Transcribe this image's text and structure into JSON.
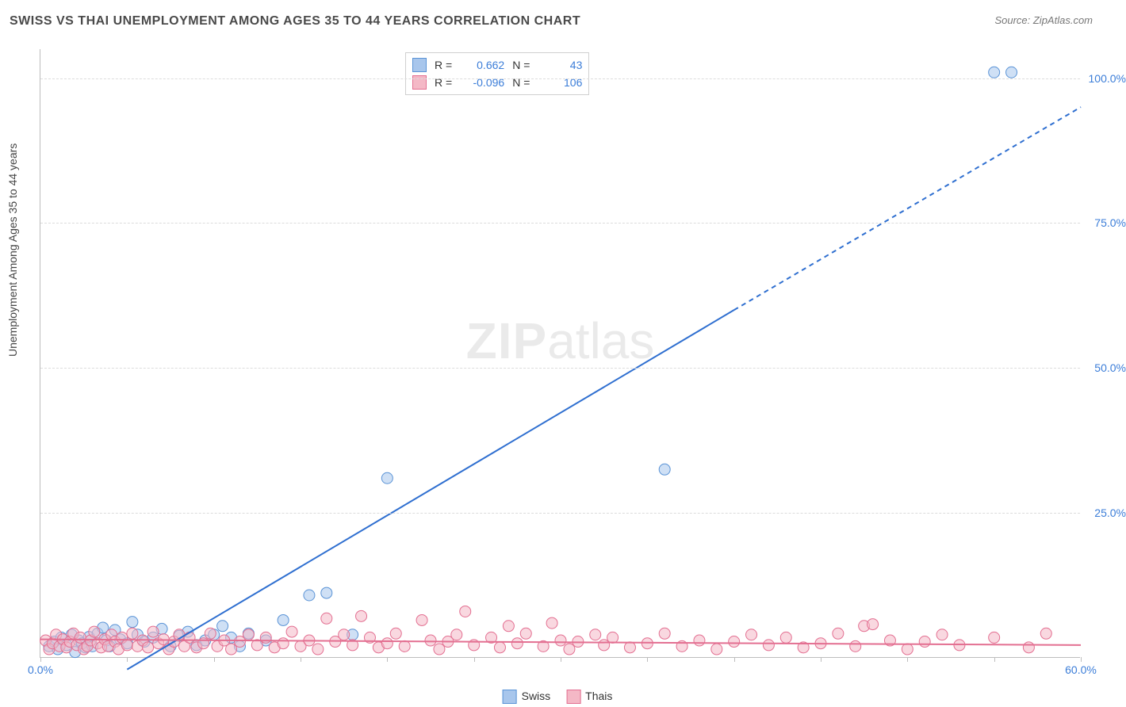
{
  "title": "SWISS VS THAI UNEMPLOYMENT AMONG AGES 35 TO 44 YEARS CORRELATION CHART",
  "source": "Source: ZipAtlas.com",
  "ylabel": "Unemployment Among Ages 35 to 44 years",
  "watermark_zip": "ZIP",
  "watermark_atlas": "atlas",
  "chart": {
    "type": "scatter",
    "xlim": [
      0,
      60
    ],
    "ylim": [
      0,
      105
    ],
    "x_ticks_minor_step": 5,
    "x_ticks": [
      {
        "v": 0,
        "label": "0.0%"
      },
      {
        "v": 60,
        "label": "60.0%"
      }
    ],
    "y_gridlines": [
      25,
      50,
      75,
      100
    ],
    "y_ticks": [
      {
        "v": 25,
        "label": "25.0%"
      },
      {
        "v": 50,
        "label": "50.0%"
      },
      {
        "v": 75,
        "label": "75.0%"
      },
      {
        "v": 100,
        "label": "100.0%"
      }
    ],
    "series": [
      {
        "id": "swiss",
        "name": "Swiss",
        "marker_fill": "#a8c6ec",
        "marker_stroke": "#5a93d6",
        "marker_opacity": 0.55,
        "marker_r": 7,
        "R": "0.662",
        "N": "43",
        "trend": {
          "x1": 5,
          "y1": -2,
          "x2": 40,
          "y2": 60,
          "x2_dash": 60,
          "y2_dash": 95,
          "stroke": "#2f6fd0",
          "width": 2
        },
        "points": [
          [
            0.5,
            2.0
          ],
          [
            0.8,
            2.8
          ],
          [
            1.0,
            1.5
          ],
          [
            1.2,
            3.5
          ],
          [
            1.5,
            2.2
          ],
          [
            1.8,
            4.0
          ],
          [
            2.0,
            1.0
          ],
          [
            2.2,
            3.0
          ],
          [
            2.4,
            2.5
          ],
          [
            2.6,
            1.8
          ],
          [
            2.8,
            3.6
          ],
          [
            3.0,
            2.0
          ],
          [
            3.3,
            4.2
          ],
          [
            3.6,
            5.2
          ],
          [
            3.8,
            3.0
          ],
          [
            4.0,
            2.0
          ],
          [
            4.3,
            4.8
          ],
          [
            4.6,
            3.2
          ],
          [
            5.0,
            2.5
          ],
          [
            5.3,
            6.2
          ],
          [
            5.6,
            4.0
          ],
          [
            6.0,
            2.8
          ],
          [
            6.5,
            3.5
          ],
          [
            7.0,
            5.0
          ],
          [
            7.5,
            2.0
          ],
          [
            8.0,
            3.8
          ],
          [
            8.5,
            4.5
          ],
          [
            9.0,
            2.2
          ],
          [
            9.5,
            3.0
          ],
          [
            10.0,
            4.0
          ],
          [
            10.5,
            5.5
          ],
          [
            11.0,
            3.5
          ],
          [
            11.5,
            2.0
          ],
          [
            12.0,
            4.2
          ],
          [
            13.0,
            3.0
          ],
          [
            14.0,
            6.5
          ],
          [
            15.5,
            10.8
          ],
          [
            16.5,
            11.2
          ],
          [
            18.0,
            4.0
          ],
          [
            20.0,
            31.0
          ],
          [
            36.0,
            32.5
          ],
          [
            55.0,
            101.0
          ],
          [
            56.0,
            101.0
          ]
        ]
      },
      {
        "id": "thais",
        "name": "Thais",
        "marker_fill": "#f4b8c6",
        "marker_stroke": "#e36f91",
        "marker_opacity": 0.55,
        "marker_r": 7,
        "R": "-0.096",
        "N": "106",
        "trend": {
          "x1": 0,
          "y1": 3.2,
          "x2": 60,
          "y2": 2.2,
          "stroke": "#e36f91",
          "width": 2
        },
        "points": [
          [
            0.3,
            3.0
          ],
          [
            0.5,
            1.5
          ],
          [
            0.7,
            2.5
          ],
          [
            0.9,
            4.0
          ],
          [
            1.1,
            2.0
          ],
          [
            1.3,
            3.2
          ],
          [
            1.5,
            1.8
          ],
          [
            1.7,
            2.8
          ],
          [
            1.9,
            4.2
          ],
          [
            2.1,
            2.2
          ],
          [
            2.3,
            3.5
          ],
          [
            2.5,
            1.5
          ],
          [
            2.7,
            2.0
          ],
          [
            2.9,
            3.0
          ],
          [
            3.1,
            4.5
          ],
          [
            3.3,
            2.5
          ],
          [
            3.5,
            1.8
          ],
          [
            3.7,
            3.2
          ],
          [
            3.9,
            2.0
          ],
          [
            4.1,
            4.0
          ],
          [
            4.3,
            2.8
          ],
          [
            4.5,
            1.5
          ],
          [
            4.7,
            3.5
          ],
          [
            5.0,
            2.2
          ],
          [
            5.3,
            4.2
          ],
          [
            5.6,
            2.0
          ],
          [
            5.9,
            3.0
          ],
          [
            6.2,
            1.8
          ],
          [
            6.5,
            4.5
          ],
          [
            6.8,
            2.5
          ],
          [
            7.1,
            3.2
          ],
          [
            7.4,
            1.5
          ],
          [
            7.7,
            2.8
          ],
          [
            8.0,
            4.0
          ],
          [
            8.3,
            2.0
          ],
          [
            8.6,
            3.5
          ],
          [
            9.0,
            1.8
          ],
          [
            9.4,
            2.5
          ],
          [
            9.8,
            4.2
          ],
          [
            10.2,
            2.0
          ],
          [
            10.6,
            3.0
          ],
          [
            11.0,
            1.5
          ],
          [
            11.5,
            2.8
          ],
          [
            12.0,
            4.0
          ],
          [
            12.5,
            2.2
          ],
          [
            13.0,
            3.5
          ],
          [
            13.5,
            1.8
          ],
          [
            14.0,
            2.5
          ],
          [
            14.5,
            4.5
          ],
          [
            15.0,
            2.0
          ],
          [
            15.5,
            3.0
          ],
          [
            16.0,
            1.5
          ],
          [
            16.5,
            6.8
          ],
          [
            17.0,
            2.8
          ],
          [
            17.5,
            4.0
          ],
          [
            18.0,
            2.2
          ],
          [
            18.5,
            7.2
          ],
          [
            19.0,
            3.5
          ],
          [
            19.5,
            1.8
          ],
          [
            20.0,
            2.5
          ],
          [
            20.5,
            4.2
          ],
          [
            21.0,
            2.0
          ],
          [
            22.0,
            6.5
          ],
          [
            22.5,
            3.0
          ],
          [
            23.0,
            1.5
          ],
          [
            23.5,
            2.8
          ],
          [
            24.0,
            4.0
          ],
          [
            24.5,
            8.0
          ],
          [
            25.0,
            2.2
          ],
          [
            26.0,
            3.5
          ],
          [
            26.5,
            1.8
          ],
          [
            27.0,
            5.5
          ],
          [
            27.5,
            2.5
          ],
          [
            28.0,
            4.2
          ],
          [
            29.0,
            2.0
          ],
          [
            29.5,
            6.0
          ],
          [
            30.0,
            3.0
          ],
          [
            30.5,
            1.5
          ],
          [
            31.0,
            2.8
          ],
          [
            32.0,
            4.0
          ],
          [
            32.5,
            2.2
          ],
          [
            33.0,
            3.5
          ],
          [
            34.0,
            1.8
          ],
          [
            35.0,
            2.5
          ],
          [
            36.0,
            4.2
          ],
          [
            37.0,
            2.0
          ],
          [
            38.0,
            3.0
          ],
          [
            39.0,
            1.5
          ],
          [
            40.0,
            2.8
          ],
          [
            41.0,
            4.0
          ],
          [
            42.0,
            2.2
          ],
          [
            43.0,
            3.5
          ],
          [
            44.0,
            1.8
          ],
          [
            45.0,
            2.5
          ],
          [
            46.0,
            4.2
          ],
          [
            47.0,
            2.0
          ],
          [
            47.5,
            5.5
          ],
          [
            48.0,
            5.8
          ],
          [
            49.0,
            3.0
          ],
          [
            50.0,
            1.5
          ],
          [
            51.0,
            2.8
          ],
          [
            52.0,
            4.0
          ],
          [
            53.0,
            2.2
          ],
          [
            55.0,
            3.5
          ],
          [
            57.0,
            1.8
          ],
          [
            58.0,
            4.2
          ]
        ]
      }
    ],
    "legend_bottom": [
      {
        "swatch_fill": "#a8c6ec",
        "swatch_stroke": "#5a93d6",
        "label": "Swiss"
      },
      {
        "swatch_fill": "#f4b8c6",
        "swatch_stroke": "#e36f91",
        "label": "Thais"
      }
    ],
    "rlegend_labels": {
      "R": "R =",
      "N": "N ="
    },
    "background_color": "#ffffff",
    "grid_color": "#dcdcdc",
    "axis_color": "#bdbdbd",
    "tick_label_color": "#3b7dd8"
  }
}
